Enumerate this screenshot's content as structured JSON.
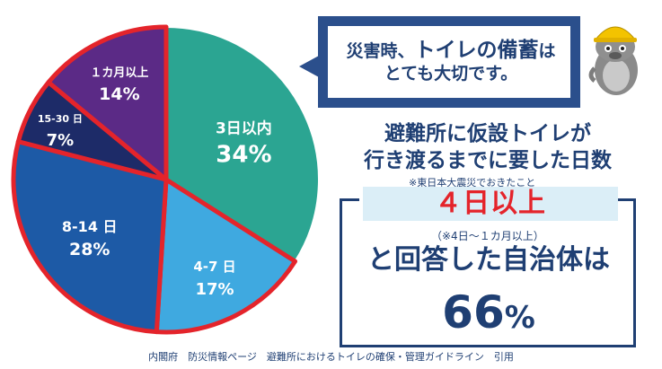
{
  "chart_data": {
    "type": "pie",
    "unit": "%",
    "slices": [
      {
        "label": "3日以内",
        "value": 34,
        "color": "#2ba592",
        "value_color": "#fff200"
      },
      {
        "label": "4-7 日",
        "value": 17,
        "color": "#3fa9e0",
        "value_color": "#ffffff"
      },
      {
        "label": "8-14 日",
        "value": 28,
        "color": "#1d5aa6",
        "value_color": "#ffffff"
      },
      {
        "label": "15-30 日",
        "value": 7,
        "color": "#1d2b68",
        "value_color": "#ffffff"
      },
      {
        "label": "１カ月以上",
        "value": 14,
        "color": "#5b2a86",
        "value_color": "#ffffff"
      }
    ],
    "highlight_border_color": "#e4242b"
  },
  "bubble": {
    "prefix": "災害時、",
    "emphasis": "トイレの備蓄",
    "suffix": "は",
    "line2": "とても大切です。"
  },
  "heading": {
    "line1": "避難所に仮設トイレが",
    "line2": "行き渡るまでに要した日数"
  },
  "note_earthquake": "※東日本大震災でおきたこと",
  "result": {
    "days": "４日以上",
    "range_note": "（※4日～１カ月以上）",
    "answer": "と回答した自治体は",
    "value": "66",
    "unit": "%"
  },
  "source": "内閣府　防災情報ページ　避難所におけるトイレの確保・管理ガイドライン　引用",
  "mascot": {
    "icon": "mascot-with-hardhat-icon"
  }
}
